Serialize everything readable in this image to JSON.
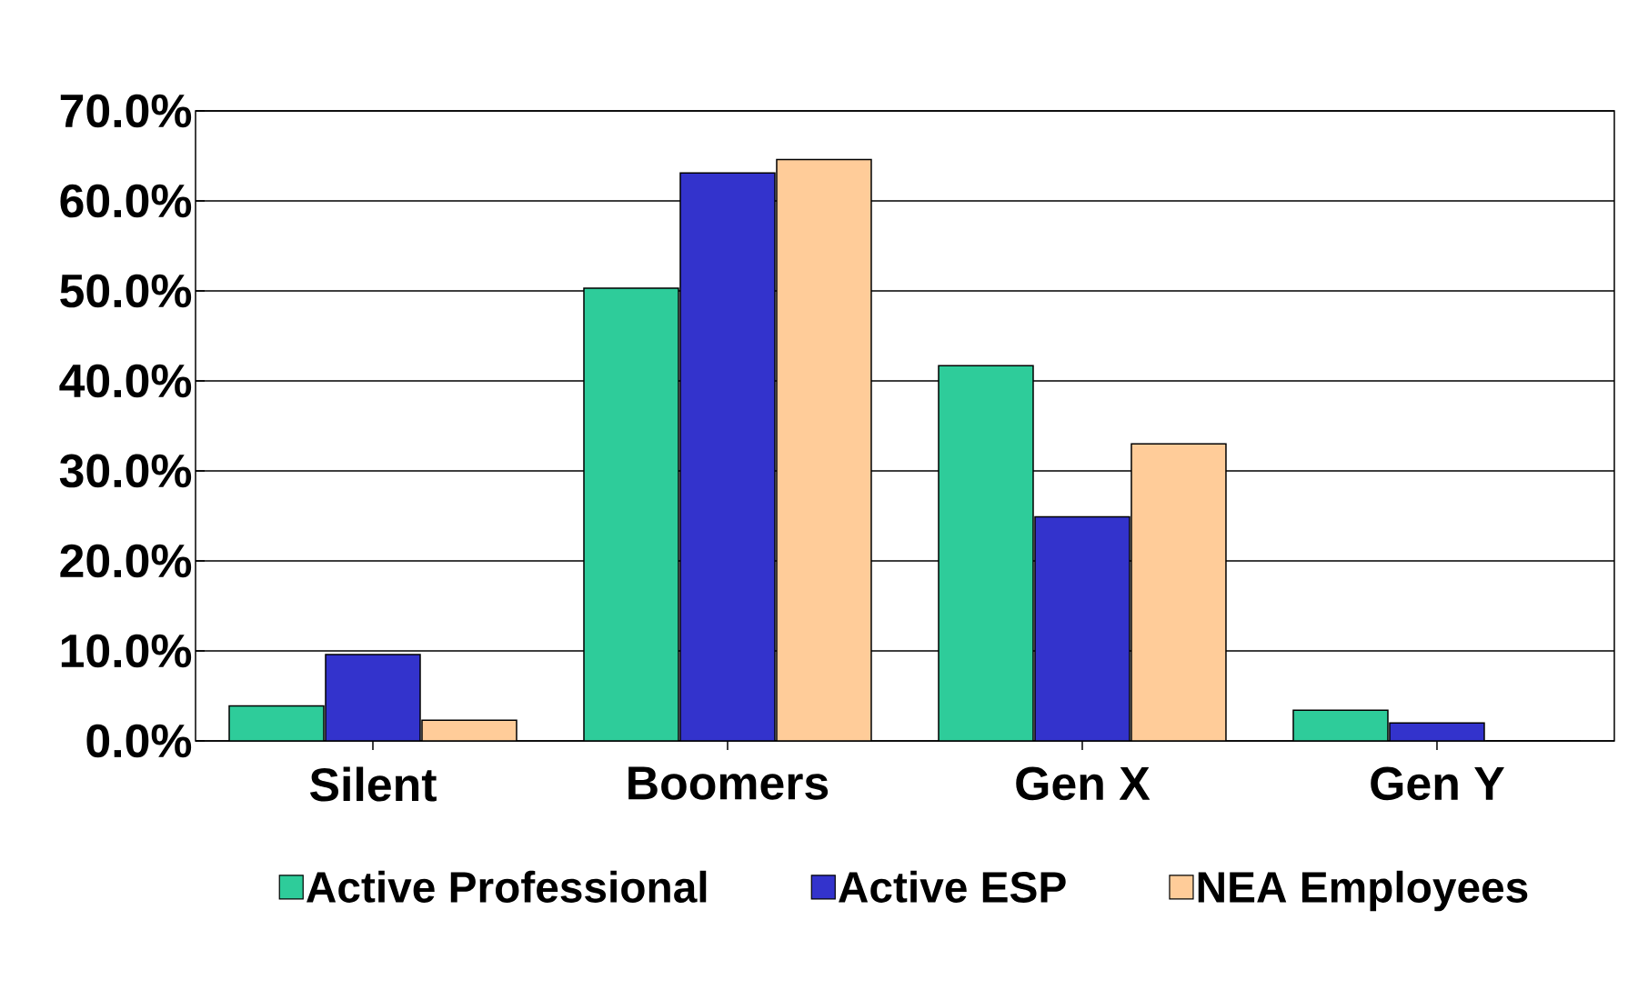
{
  "chart_data": {
    "type": "bar",
    "categories": [
      "Silent",
      "Boomers",
      "Gen X",
      "Gen Y"
    ],
    "series": [
      {
        "name": "Active Professional",
        "color": "#2ecc9a",
        "values": [
          3.9,
          50.3,
          41.7,
          3.4
        ]
      },
      {
        "name": "Active ESP",
        "color": "#3333cc",
        "values": [
          9.6,
          63.1,
          24.9,
          2.0
        ]
      },
      {
        "name": "NEA Employees",
        "color": "#ffcc99",
        "values": [
          2.3,
          64.6,
          33.0,
          0.0
        ]
      }
    ],
    "ylim": [
      0,
      70
    ],
    "yticks": [
      {
        "value": 0,
        "label": "0.0%"
      },
      {
        "value": 10,
        "label": "10.0%"
      },
      {
        "value": 20,
        "label": "20.0%"
      },
      {
        "value": 30,
        "label": "30.0%"
      },
      {
        "value": 40,
        "label": "40.0%"
      },
      {
        "value": 50,
        "label": "50.0%"
      },
      {
        "value": 60,
        "label": "60.0%"
      },
      {
        "value": 70,
        "label": "70.0%"
      }
    ],
    "grid": "y",
    "legend": "bottom"
  }
}
